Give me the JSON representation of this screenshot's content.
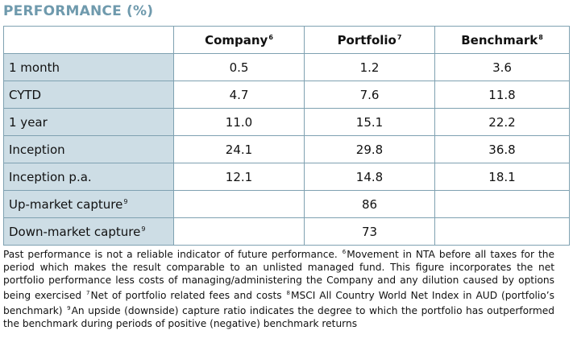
{
  "title": "PERFORMANCE (%)",
  "table": {
    "headers": [
      {
        "label": "Company",
        "note": "6"
      },
      {
        "label": "Portfolio",
        "note": "7"
      },
      {
        "label": "Benchmark",
        "note": "8"
      }
    ],
    "rows": [
      {
        "label": "1 month",
        "note": "",
        "company": "0.5",
        "portfolio": "1.2",
        "benchmark": "3.6"
      },
      {
        "label": "CYTD",
        "note": "",
        "company": "4.7",
        "portfolio": "7.6",
        "benchmark": "11.8"
      },
      {
        "label": "1 year",
        "note": "",
        "company": "11.0",
        "portfolio": "15.1",
        "benchmark": "22.2"
      },
      {
        "label": "Inception",
        "note": "",
        "company": "24.1",
        "portfolio": "29.8",
        "benchmark": "36.8"
      },
      {
        "label": "Inception p.a.",
        "note": "",
        "company": "12.1",
        "portfolio": "14.8",
        "benchmark": "18.1"
      },
      {
        "label": "Up-market capture",
        "note": "9",
        "company": "",
        "portfolio": "86",
        "benchmark": ""
      },
      {
        "label": "Down-market capture",
        "note": "9",
        "company": "",
        "portfolio": "73",
        "benchmark": ""
      }
    ]
  },
  "footnote": {
    "intro": "Past performance is not a reliable indicator of future performance. ",
    "n6": "6",
    "t6": "Movement in NTA before all taxes for the period which makes the result comparable to an unlisted managed fund. This figure incorporates the net portfolio performance less costs of managing/administering the Company and any dilution caused by options being exercised ",
    "n7": "7",
    "t7": "Net of portfolio related fees and costs ",
    "n8": "8",
    "t8": "MSCI All Country World Net Index in AUD (portfolio’s benchmark) ",
    "n9": "9",
    "t9": "An upside (downside) capture ratio indicates the degree to which the portfolio has outperformed the benchmark during periods of positive (negative) benchmark returns"
  }
}
